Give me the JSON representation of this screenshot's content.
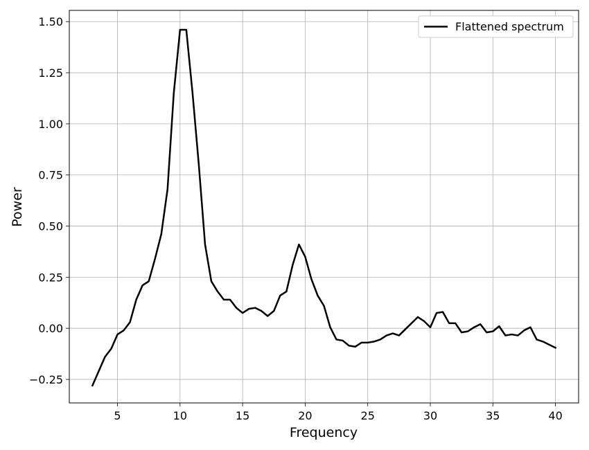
{
  "chart_data": {
    "type": "line",
    "title": "",
    "xlabel": "Frequency",
    "ylabel": "Power",
    "xlim": [
      1.15,
      41.85
    ],
    "ylim": [
      -0.365,
      1.555
    ],
    "xticks": [
      5,
      10,
      15,
      20,
      25,
      30,
      35,
      40
    ],
    "yticks": [
      -0.25,
      0.0,
      0.25,
      0.5,
      0.75,
      1.0,
      1.25,
      1.5
    ],
    "ytick_labels": [
      "−0.25",
      "0.00",
      "0.25",
      "0.50",
      "0.75",
      "1.00",
      "1.25",
      "1.50"
    ],
    "grid": true,
    "legend_position": "top-right",
    "series": [
      {
        "name": "Flattened spectrum",
        "color": "#000000",
        "x": [
          3,
          3.5,
          4,
          4.5,
          5,
          5.5,
          6,
          6.5,
          7,
          7.5,
          8,
          8.5,
          9,
          9.5,
          10,
          10.5,
          11,
          11.5,
          12,
          12.5,
          13,
          13.5,
          14,
          14.5,
          15,
          15.5,
          16,
          16.5,
          17,
          17.5,
          18,
          18.5,
          19,
          19.5,
          20,
          20.5,
          21,
          21.5,
          22,
          22.5,
          23,
          23.5,
          24,
          24.5,
          25,
          25.5,
          26,
          26.5,
          27,
          27.5,
          28,
          28.5,
          29,
          29.5,
          30,
          30.5,
          31,
          31.5,
          32,
          32.5,
          33,
          33.5,
          34,
          34.5,
          35,
          35.5,
          36,
          36.5,
          37,
          37.5,
          38,
          38.5,
          39,
          39.5,
          40
        ],
        "y": [
          -0.28,
          -0.21,
          -0.14,
          -0.1,
          -0.03,
          -0.01,
          0.03,
          0.14,
          0.21,
          0.23,
          0.34,
          0.46,
          0.68,
          1.15,
          1.46,
          1.46,
          1.15,
          0.8,
          0.41,
          0.23,
          0.18,
          0.14,
          0.14,
          0.1,
          0.075,
          0.095,
          0.1,
          0.085,
          0.06,
          0.085,
          0.16,
          0.18,
          0.31,
          0.41,
          0.35,
          0.24,
          0.16,
          0.11,
          0.005,
          -0.055,
          -0.06,
          -0.085,
          -0.09,
          -0.07,
          -0.07,
          -0.065,
          -0.055,
          -0.035,
          -0.025,
          -0.035,
          -0.005,
          0.025,
          0.055,
          0.035,
          0.005,
          0.075,
          0.08,
          0.025,
          0.025,
          -0.02,
          -0.015,
          0.005,
          0.02,
          -0.02,
          -0.015,
          0.01,
          -0.035,
          -0.03,
          -0.035,
          -0.01,
          0.005,
          -0.055,
          -0.065,
          -0.08,
          -0.095
        ]
      }
    ]
  }
}
